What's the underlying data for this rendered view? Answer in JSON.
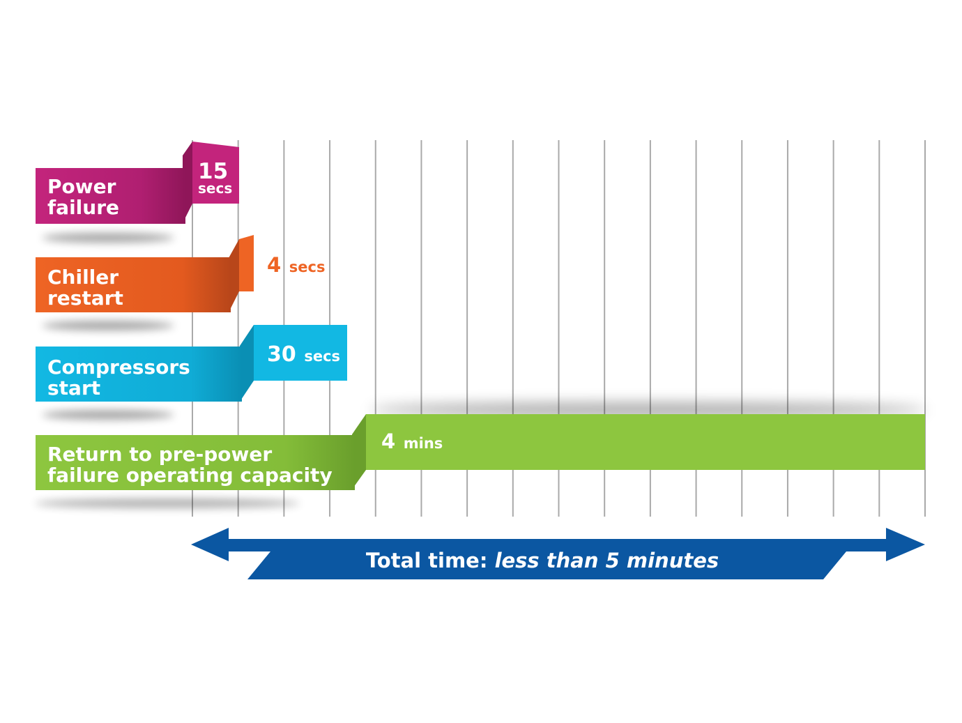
{
  "colors": {
    "power": "#c3247c",
    "power_dark": "#8f1659",
    "chiller": "#ee6424",
    "chiller_dark": "#b8461a",
    "compressor": "#12b8e3",
    "compressor_dark": "#0a8fb4",
    "return": "#8dc63f",
    "return_dark": "#6a9f2c",
    "total": "#0b57a2",
    "grid": "#a9a9a9"
  },
  "steps": [
    {
      "id": "power",
      "label_line1": "Power",
      "label_line2": "failure",
      "value": "15",
      "unit": "secs"
    },
    {
      "id": "chiller",
      "label_line1": "Chiller",
      "label_line2": "restart",
      "value": "4",
      "unit": "secs"
    },
    {
      "id": "compressor",
      "label_line1": "Compressors",
      "label_line2": "start",
      "value": "30",
      "unit": "secs"
    },
    {
      "id": "return",
      "label_line1": "Return to pre-power",
      "label_line2": "failure operating capacity",
      "value": "4",
      "unit": "mins"
    }
  ],
  "total": {
    "prefix": "Total time: ",
    "emphasis": "less than 5 minutes"
  }
}
